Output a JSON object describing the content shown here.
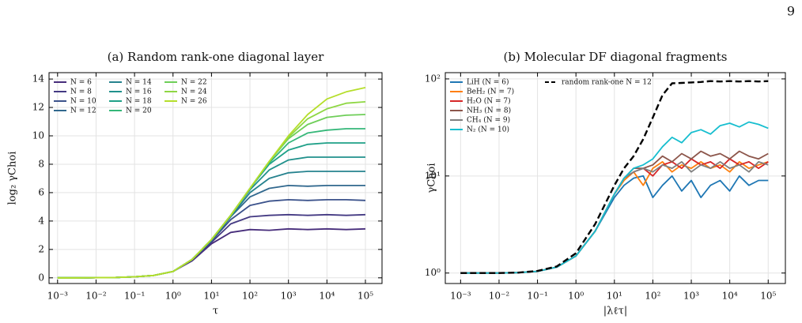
{
  "page_number": "9",
  "chart_data": [
    {
      "type": "line",
      "title": "(a) Random rank-one diagonal layer",
      "xlabel": "τ",
      "ylabel": "log₂ γChoi",
      "xlog": true,
      "ylog": false,
      "grid": true,
      "xlim": [
        0.0006,
        270000
      ],
      "ylim": [
        -0.4,
        14.45
      ],
      "xticks": [
        {
          "value": 0.001,
          "label": "10⁻³"
        },
        {
          "value": 0.01,
          "label": "10⁻²"
        },
        {
          "value": 0.1,
          "label": "10⁻¹"
        },
        {
          "value": 1,
          "label": "10⁰"
        },
        {
          "value": 10,
          "label": "10¹"
        },
        {
          "value": 100,
          "label": "10²"
        },
        {
          "value": 1000,
          "label": "10³"
        },
        {
          "value": 10000,
          "label": "10⁴"
        },
        {
          "value": 100000,
          "label": "10⁵"
        }
      ],
      "yticks": [
        0,
        2,
        4,
        6,
        8,
        10,
        12,
        14
      ],
      "legend": {
        "loc": "upper left",
        "rows": 4
      },
      "x": [
        0.001,
        0.00316,
        0.01,
        0.0316,
        0.1,
        0.316,
        1,
        3.16,
        10,
        31.6,
        100,
        316,
        1000,
        3160,
        10000,
        31600,
        100000
      ],
      "series": [
        {
          "name": "N = 6",
          "color": "#472d7b",
          "values": [
            0,
            0,
            0.01,
            0.02,
            0.07,
            0.17,
            0.45,
            1.2,
            2.4,
            3.2,
            3.4,
            3.35,
            3.45,
            3.4,
            3.45,
            3.4,
            3.45
          ]
        },
        {
          "name": "N = 8",
          "color": "#443a83",
          "values": [
            0,
            0,
            0.01,
            0.02,
            0.07,
            0.17,
            0.45,
            1.25,
            2.5,
            3.8,
            4.3,
            4.4,
            4.45,
            4.4,
            4.45,
            4.4,
            4.45
          ]
        },
        {
          "name": "N = 10",
          "color": "#3b528b",
          "values": [
            0,
            0,
            0.01,
            0.02,
            0.07,
            0.17,
            0.45,
            1.3,
            2.6,
            4.1,
            5.1,
            5.4,
            5.5,
            5.45,
            5.5,
            5.5,
            5.45
          ]
        },
        {
          "name": "N = 12",
          "color": "#31688e",
          "values": [
            0,
            0,
            0.01,
            0.02,
            0.07,
            0.17,
            0.45,
            1.3,
            2.6,
            4.3,
            5.7,
            6.3,
            6.5,
            6.45,
            6.5,
            6.5,
            6.5
          ]
        },
        {
          "name": "N = 14",
          "color": "#26828e",
          "values": [
            0,
            0,
            0.01,
            0.02,
            0.07,
            0.17,
            0.45,
            1.3,
            2.7,
            4.3,
            6.0,
            7.0,
            7.4,
            7.5,
            7.5,
            7.5,
            7.5
          ]
        },
        {
          "name": "N = 16",
          "color": "#21918c",
          "values": [
            0,
            0,
            0.01,
            0.02,
            0.07,
            0.17,
            0.45,
            1.3,
            2.7,
            4.4,
            6.2,
            7.6,
            8.3,
            8.5,
            8.5,
            8.5,
            8.5
          ]
        },
        {
          "name": "N = 18",
          "color": "#1fa088",
          "values": [
            0,
            0,
            0.01,
            0.02,
            0.07,
            0.17,
            0.45,
            1.3,
            2.7,
            4.4,
            6.3,
            8.0,
            9.0,
            9.4,
            9.5,
            9.5,
            9.5
          ]
        },
        {
          "name": "N = 20",
          "color": "#35b779",
          "values": [
            0,
            0,
            0.01,
            0.02,
            0.07,
            0.17,
            0.45,
            1.3,
            2.7,
            4.4,
            6.3,
            8.1,
            9.5,
            10.2,
            10.4,
            10.5,
            10.5
          ]
        },
        {
          "name": "N = 22",
          "color": "#6ece58",
          "values": [
            0,
            0,
            0.01,
            0.02,
            0.07,
            0.17,
            0.45,
            1.3,
            2.7,
            4.4,
            6.3,
            8.2,
            9.8,
            10.8,
            11.3,
            11.45,
            11.5
          ]
        },
        {
          "name": "N = 24",
          "color": "#8fd744",
          "values": [
            0,
            0,
            0.01,
            0.02,
            0.07,
            0.17,
            0.45,
            1.3,
            2.7,
            4.4,
            6.3,
            8.2,
            9.9,
            11.2,
            11.9,
            12.3,
            12.4
          ]
        },
        {
          "name": "N = 26",
          "color": "#b5de2b",
          "values": [
            0,
            0,
            0.01,
            0.02,
            0.07,
            0.17,
            0.45,
            1.3,
            2.7,
            4.4,
            6.3,
            8.2,
            10,
            11.5,
            12.6,
            13.1,
            13.4
          ]
        }
      ]
    },
    {
      "type": "line",
      "title": "(b) Molecular DF diagonal fragments",
      "xlabel": "|λℓτ|",
      "ylabel": "γChoi",
      "xlog": true,
      "ylog": true,
      "grid": true,
      "xlim": [
        0.0004,
        280000
      ],
      "ylim": [
        0.78,
        116
      ],
      "xticks": [
        {
          "value": 0.001,
          "label": "10⁻³"
        },
        {
          "value": 0.01,
          "label": "10⁻²"
        },
        {
          "value": 0.1,
          "label": "10⁻¹"
        },
        {
          "value": 1,
          "label": "10⁰"
        },
        {
          "value": 10,
          "label": "10¹"
        },
        {
          "value": 100,
          "label": "10²"
        },
        {
          "value": 1000,
          "label": "10³"
        },
        {
          "value": 10000,
          "label": "10⁴"
        },
        {
          "value": 100000,
          "label": "10⁵"
        }
      ],
      "yticks": [
        {
          "value": 1,
          "label": "10⁰"
        },
        {
          "value": 10,
          "label": "10¹"
        },
        {
          "value": 100,
          "label": "10²"
        }
      ],
      "legend": {
        "loc": "upper left",
        "rows": 6
      },
      "x": [
        0.001,
        0.00316,
        0.01,
        0.0316,
        0.1,
        0.316,
        1,
        3.16,
        10,
        17.8,
        31.6,
        56.2,
        100,
        178,
        316,
        562,
        1000,
        1780,
        3160,
        5620,
        10000,
        17800,
        31600,
        56200,
        100000
      ],
      "series": [
        {
          "name": "LiH (N = 6)",
          "color": "#1f77b4",
          "values": [
            1,
            1,
            1,
            1.01,
            1.04,
            1.15,
            1.5,
            2.7,
            6,
            8,
            9.5,
            10,
            6,
            8,
            10,
            7,
            9,
            6,
            8,
            9,
            7,
            10,
            8,
            9,
            9
          ]
        },
        {
          "name": "BeH₂ (N = 7)",
          "color": "#ff7f0e",
          "values": [
            1,
            1,
            1,
            1.01,
            1.04,
            1.15,
            1.5,
            2.7,
            6.5,
            9,
            11,
            8,
            12,
            14,
            11,
            13,
            12,
            14,
            12,
            13,
            11,
            14,
            12,
            13,
            14
          ]
        },
        {
          "name": "H₂O (N = 7)",
          "color": "#d62728",
          "values": [
            1,
            1,
            1,
            1.01,
            1.04,
            1.15,
            1.5,
            2.7,
            6.5,
            9.5,
            11,
            12,
            10,
            13,
            14,
            12,
            15,
            13,
            14,
            12,
            15,
            13,
            14,
            12,
            14
          ]
        },
        {
          "name": "NH₃ (N = 8)",
          "color": "#8c564b",
          "values": [
            1,
            1,
            1,
            1.01,
            1.04,
            1.15,
            1.5,
            2.7,
            6.5,
            9.5,
            12,
            12,
            13,
            16,
            14,
            17,
            15,
            18,
            16,
            17,
            15,
            18,
            16,
            15,
            17
          ]
        },
        {
          "name": "CH₄ (N = 9)",
          "color": "#7f7f7f",
          "values": [
            1,
            1,
            1,
            1.01,
            1.04,
            1.15,
            1.5,
            2.7,
            6.5,
            9.5,
            11,
            12,
            11,
            13,
            12,
            14,
            11,
            13,
            12,
            14,
            12,
            13,
            11,
            14,
            13
          ]
        },
        {
          "name": "N₂ (N = 10)",
          "color": "#17becf",
          "values": [
            1,
            1,
            1,
            1.01,
            1.04,
            1.15,
            1.5,
            2.7,
            6.5,
            9.5,
            12,
            13,
            15,
            20,
            25,
            22,
            28,
            30,
            27,
            33,
            35,
            32,
            36,
            34,
            31
          ]
        },
        {
          "name": "random rank-one N = 12",
          "color": "#000000",
          "dash": true,
          "values": [
            1,
            1,
            1,
            1.01,
            1.05,
            1.17,
            1.6,
            3.2,
            8,
            12,
            16,
            24,
            40,
            68,
            90,
            91,
            92,
            93,
            95,
            94,
            95,
            94,
            95,
            94,
            95
          ]
        }
      ]
    }
  ]
}
